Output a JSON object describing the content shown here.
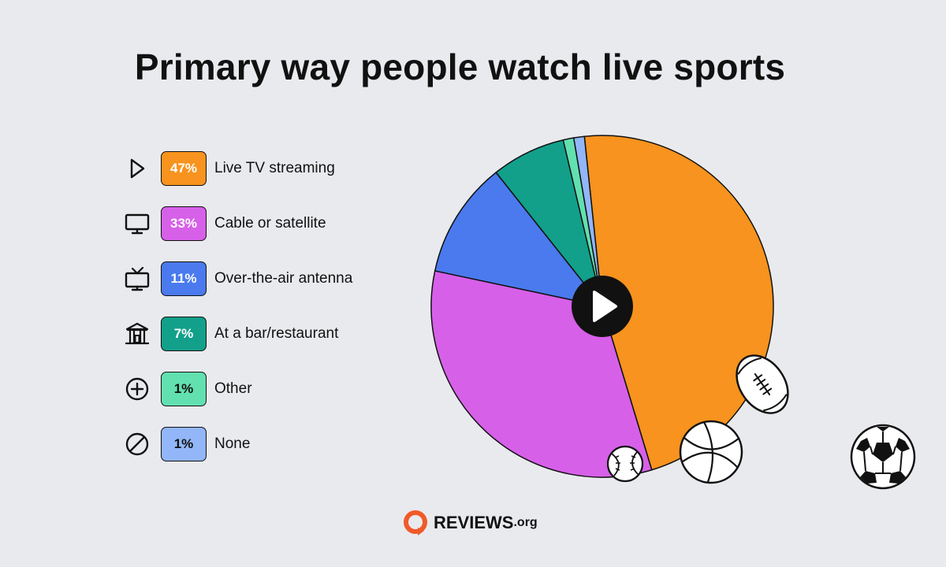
{
  "chart_data": {
    "type": "pie",
    "title": "Primary way people watch live sports",
    "slices": [
      {
        "label": "Live TV streaming",
        "value": 47,
        "pct_label": "47%",
        "color": "#f7931e",
        "text_color": "#ffffff",
        "icon": "play-outline-icon"
      },
      {
        "label": "Cable or satellite",
        "value": 33,
        "pct_label": "33%",
        "color": "#d760e9",
        "text_color": "#ffffff",
        "icon": "monitor-icon"
      },
      {
        "label": "Over-the-air antenna",
        "value": 11,
        "pct_label": "11%",
        "color": "#4a7aee",
        "text_color": "#ffffff",
        "icon": "antenna-tv-icon"
      },
      {
        "label": "At a bar/restaurant",
        "value": 7,
        "pct_label": "7%",
        "color": "#12a08a",
        "text_color": "#ffffff",
        "icon": "building-icon"
      },
      {
        "label": "Other",
        "value": 1,
        "pct_label": "1%",
        "color": "#62e0b0",
        "text_color": "#111111",
        "icon": "plus-circle-icon"
      },
      {
        "label": "None",
        "value": 1,
        "pct_label": "1%",
        "color": "#92b6f8",
        "text_color": "#111111",
        "icon": "prohibited-icon"
      }
    ],
    "legend": "left"
  },
  "brand": {
    "name": "REVIEWS",
    "tld": ".org",
    "color": "#f05a28"
  }
}
